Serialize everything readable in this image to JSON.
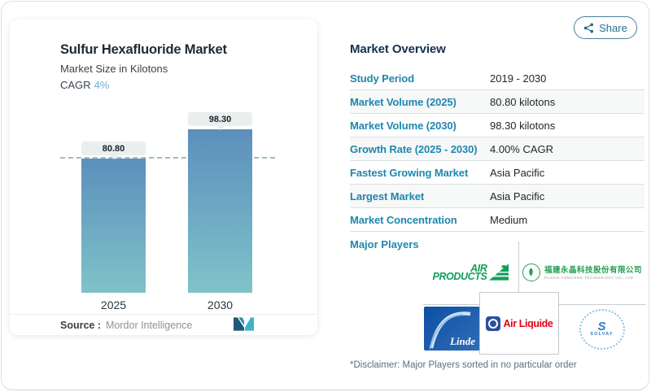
{
  "share": {
    "label": "Share"
  },
  "chart_card": {
    "title": "Sulfur Hexafluoride Market",
    "subtitle": "Market Size in Kilotons",
    "cagr_label": "CAGR",
    "cagr_value": "4%",
    "source_label": "Source :",
    "source_value": "Mordor Intelligence"
  },
  "chart_data": {
    "type": "bar",
    "title": "Sulfur Hexafluoride Market",
    "subtitle": "Market Size in Kilotons",
    "ylabel": "Kilotons",
    "categories": [
      "2025",
      "2030"
    ],
    "values": [
      80.8,
      98.3
    ],
    "value_labels": [
      "80.80",
      "98.30"
    ],
    "cagr_percent": 4,
    "reference_line": 80.8,
    "ylim": [
      0,
      107
    ],
    "grid": false,
    "bar_gradient_top": "#5c8fbc",
    "bar_gradient_bottom": "#7fc3c9"
  },
  "overview": {
    "title": "Market Overview",
    "rows": [
      {
        "label": "Study Period",
        "value": "2019 - 2030"
      },
      {
        "label": "Market Volume (2025)",
        "value": "80.80 kilotons"
      },
      {
        "label": "Market Volume (2030)",
        "value": "98.30 kilotons"
      },
      {
        "label": "Growth Rate (2025 - 2030)",
        "value": "4.00% CAGR"
      },
      {
        "label": "Fastest Growing Market",
        "value": "Asia Pacific"
      },
      {
        "label": "Largest Market",
        "value": "Asia Pacific"
      },
      {
        "label": "Market Concentration",
        "value": "Medium"
      }
    ],
    "major_players_label": "Major Players",
    "disclaimer": "*Disclaimer: Major Players sorted in no particular order"
  },
  "players": {
    "air_products": {
      "line1": "AIR",
      "line2": "PRODUCTS"
    },
    "fujian": {
      "cn": "福建永晶科技股份有限公司",
      "en": "FUJIAN YONGJING TECHNOLOGY CO., LTD"
    },
    "linde": {
      "name": "Linde"
    },
    "air_liquide": {
      "name": "Air Liquide"
    },
    "solvay": {
      "s": "S",
      "name": "SOLVAY"
    }
  },
  "colors": {
    "label_blue": "#1e87ae",
    "title_navy": "#16314a",
    "cagr_accent": "#6bb0d2",
    "air_products_green": "#0fa15a",
    "fujian_green": "#239f54",
    "linde_blue": "#0d4fa4",
    "air_liquide_red": "#e2001a",
    "solvay_blue": "#2f7cc0",
    "mordor_dark": "#1b5a73",
    "mordor_cyan": "#3cb4ca"
  }
}
